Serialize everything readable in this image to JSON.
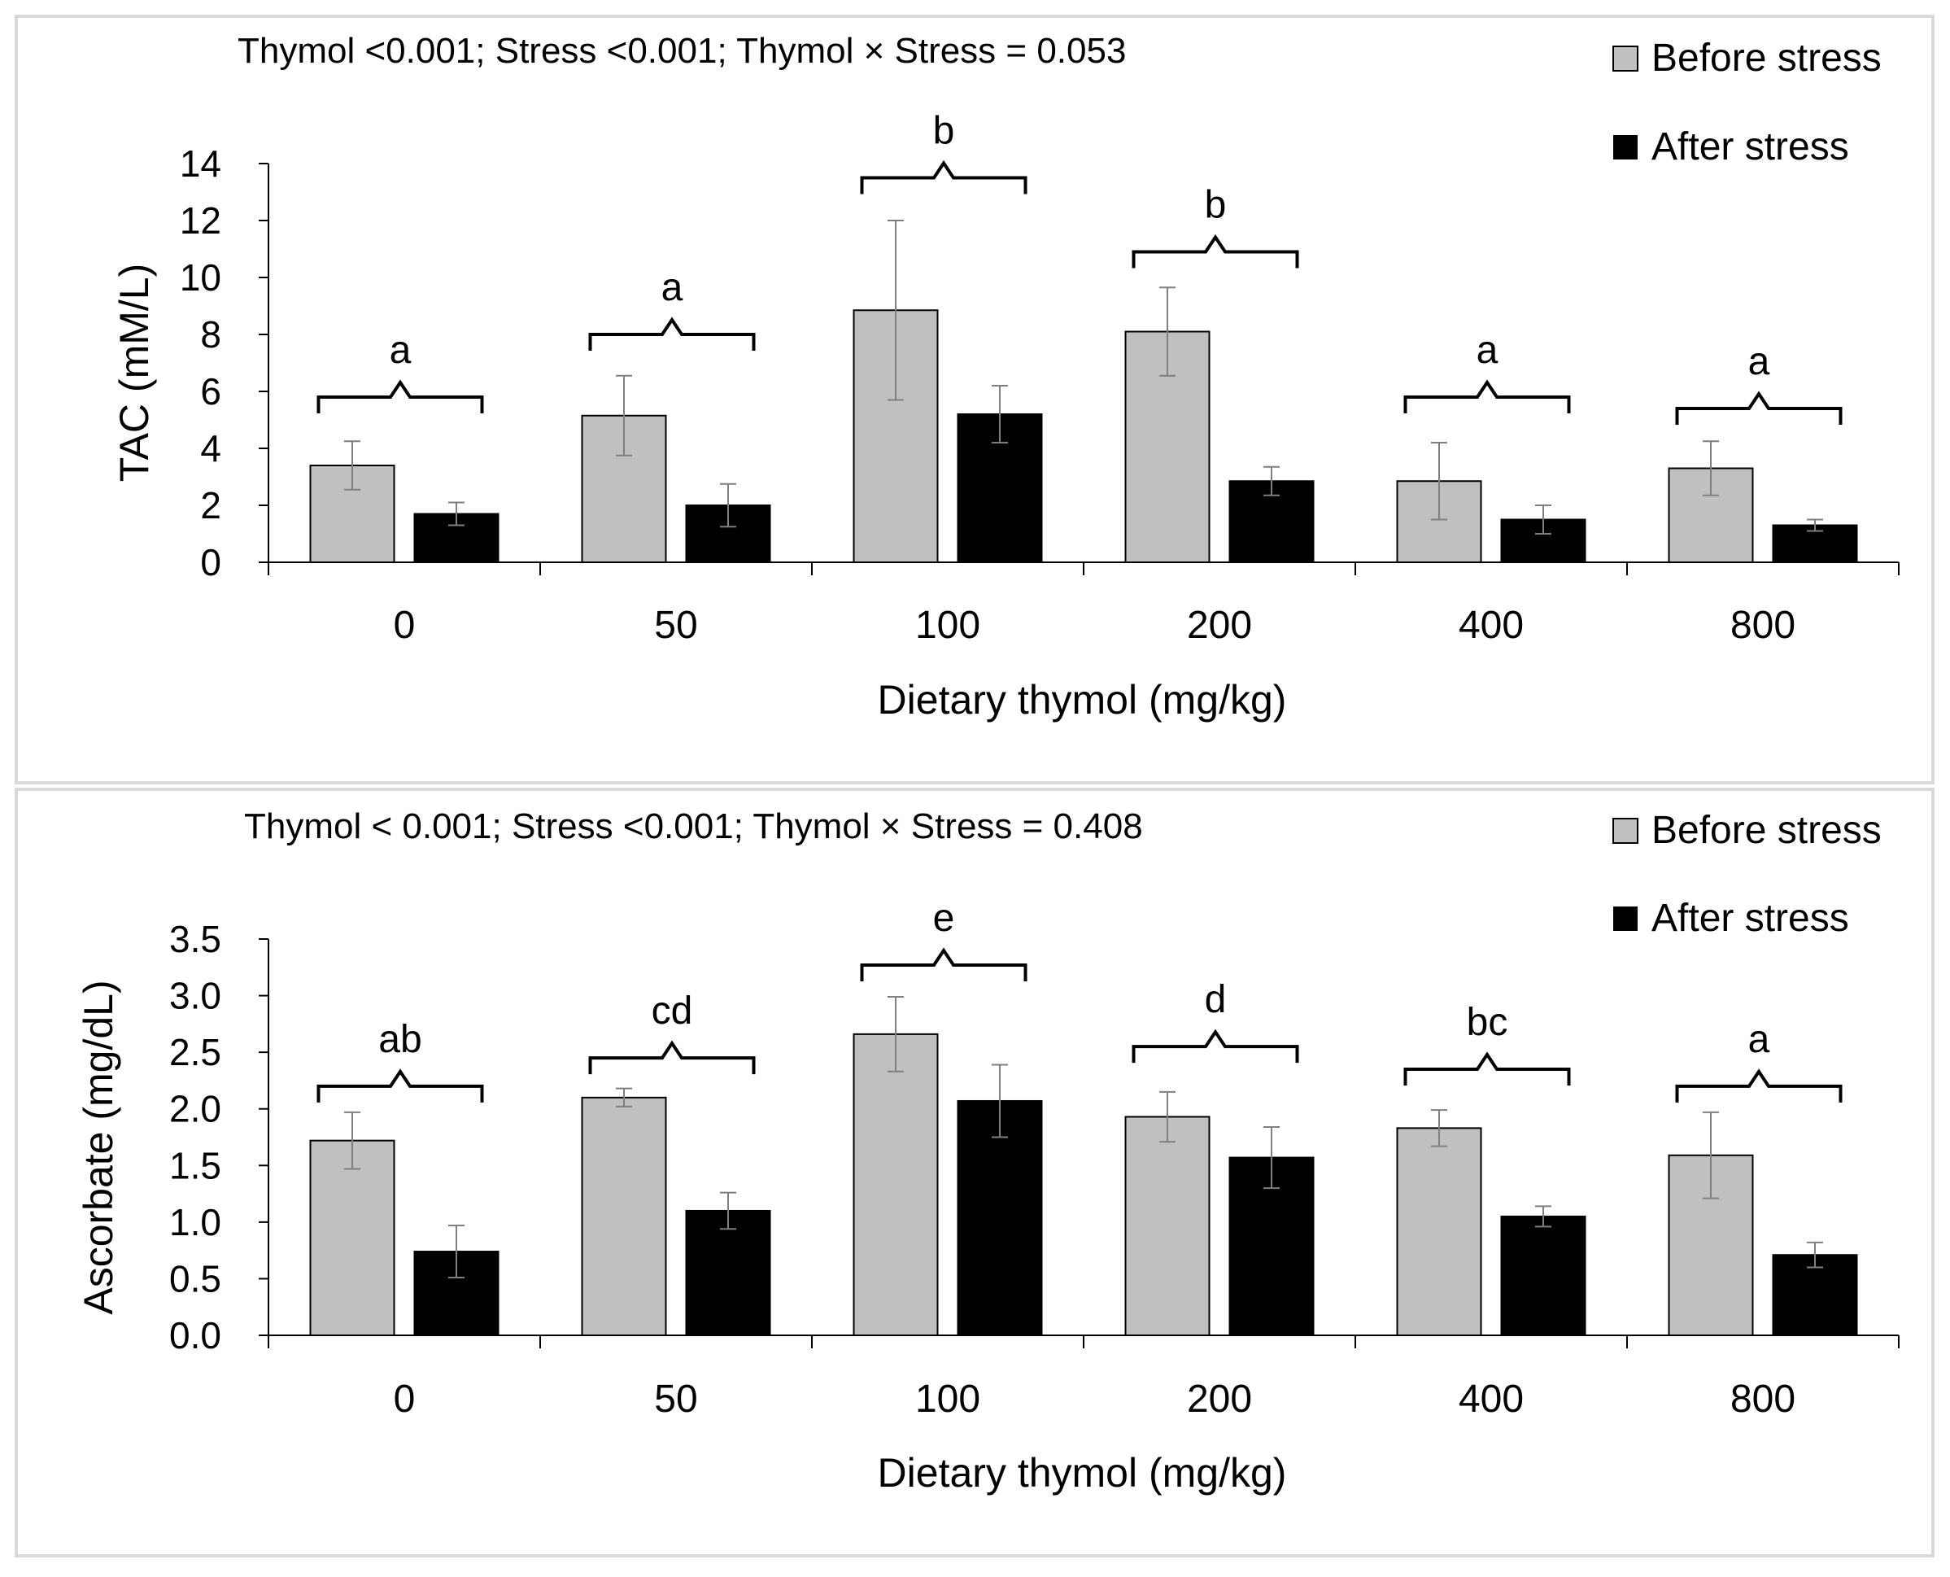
{
  "chart_data": [
    {
      "type": "bar",
      "stats_text": "Thymol <0.001; Stress <0.001; Thymol × Stress = 0.053",
      "xlabel": "Dietary thymol (mg/kg)",
      "ylabel": "TAC (mM/L)",
      "ylim": [
        0,
        14
      ],
      "yticks": [
        0,
        2,
        4,
        6,
        8,
        10,
        12,
        14
      ],
      "ytick_labels": [
        "0",
        "2",
        "4",
        "6",
        "8",
        "10",
        "12",
        "14"
      ],
      "categories": [
        "0",
        "50",
        "100",
        "200",
        "400",
        "800"
      ],
      "series": [
        {
          "name": "Before stress",
          "color": "#c0c0c0",
          "values": [
            3.4,
            5.15,
            8.85,
            8.1,
            2.85,
            3.3
          ],
          "errors": [
            0.85,
            1.4,
            3.15,
            1.55,
            1.35,
            0.95
          ]
        },
        {
          "name": "After stress",
          "color": "#000000",
          "values": [
            1.7,
            2.0,
            5.2,
            2.85,
            1.5,
            1.3
          ],
          "errors": [
            0.4,
            0.75,
            1.0,
            0.5,
            0.5,
            0.2
          ]
        }
      ],
      "groups": [
        {
          "letter": "a",
          "bracket_y": 5.8
        },
        {
          "letter": "a",
          "bracket_y": 8.0
        },
        {
          "letter": "b",
          "bracket_y": 13.5
        },
        {
          "letter": "b",
          "bracket_y": 10.9
        },
        {
          "letter": "a",
          "bracket_y": 5.8
        },
        {
          "letter": "a",
          "bracket_y": 5.4
        }
      ]
    },
    {
      "type": "bar",
      "stats_text": "Thymol < 0.001; Stress <0.001; Thymol × Stress = 0.408",
      "xlabel": "Dietary thymol (mg/kg)",
      "ylabel": "Ascorbate (mg/dL)",
      "ylim": [
        0,
        3.5
      ],
      "yticks": [
        0,
        0.5,
        1.0,
        1.5,
        2.0,
        2.5,
        3.0,
        3.5
      ],
      "ytick_labels": [
        "0.0",
        "0.5",
        "1.0",
        "1.5",
        "2.0",
        "2.5",
        "3.0",
        "3.5"
      ],
      "categories": [
        "0",
        "50",
        "100",
        "200",
        "400",
        "800"
      ],
      "series": [
        {
          "name": "Before stress",
          "color": "#c0c0c0",
          "values": [
            1.72,
            2.1,
            2.66,
            1.93,
            1.83,
            1.59
          ],
          "errors": [
            0.25,
            0.08,
            0.33,
            0.22,
            0.16,
            0.38
          ]
        },
        {
          "name": "After stress",
          "color": "#000000",
          "values": [
            0.74,
            1.1,
            2.07,
            1.57,
            1.05,
            0.71
          ],
          "errors": [
            0.23,
            0.16,
            0.32,
            0.27,
            0.09,
            0.11
          ]
        }
      ],
      "groups": [
        {
          "letter": "ab",
          "bracket_y": 2.2
        },
        {
          "letter": "cd",
          "bracket_y": 2.45
        },
        {
          "letter": "e",
          "bracket_y": 3.27
        },
        {
          "letter": "d",
          "bracket_y": 2.55
        },
        {
          "letter": "bc",
          "bracket_y": 2.35
        },
        {
          "letter": "a",
          "bracket_y": 2.2
        }
      ]
    }
  ]
}
